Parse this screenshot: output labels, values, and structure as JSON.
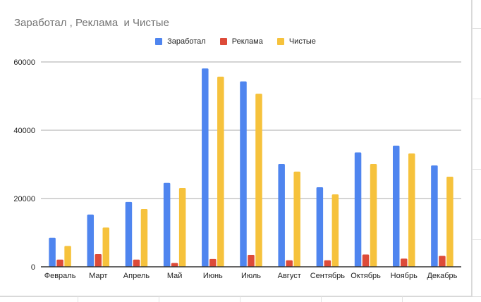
{
  "colors": {
    "earned": "#4f85ef",
    "ads": "#dd4b39",
    "net": "#f6c23c",
    "grid": "#c6c6c6",
    "axis": "#333333"
  },
  "chart_data": {
    "type": "bar",
    "title": "Заработал , Реклама  и Чистые",
    "xlabel": "",
    "ylabel": "",
    "ylim": [
      0,
      65000
    ],
    "yticks": [
      "0",
      "20000",
      "40000",
      "60000"
    ],
    "ytick_values": [
      0,
      20000,
      40000,
      60000
    ],
    "grid": true,
    "legend_position": "top-center",
    "categories": [
      "Февраль",
      "Март",
      "Апрель",
      "Май",
      "Июнь",
      "Июль",
      "Август",
      "Сентябрь",
      "Октябрь",
      "Ноябрь",
      "Декабрь"
    ],
    "series": [
      {
        "name": "Заработал",
        "color": "#4f85ef",
        "values": [
          8500,
          15300,
          19000,
          24600,
          58100,
          54300,
          30100,
          23300,
          33500,
          35500,
          29700
        ]
      },
      {
        "name": "Реклама",
        "color": "#dd4b39",
        "values": [
          2100,
          3700,
          2100,
          1100,
          2300,
          3500,
          1900,
          1900,
          3600,
          2400,
          3200
        ]
      },
      {
        "name": "Чистые",
        "color": "#f6c23c",
        "values": [
          6100,
          11500,
          16900,
          23100,
          55700,
          50700,
          27900,
          21200,
          30100,
          33200,
          26400
        ]
      }
    ]
  }
}
